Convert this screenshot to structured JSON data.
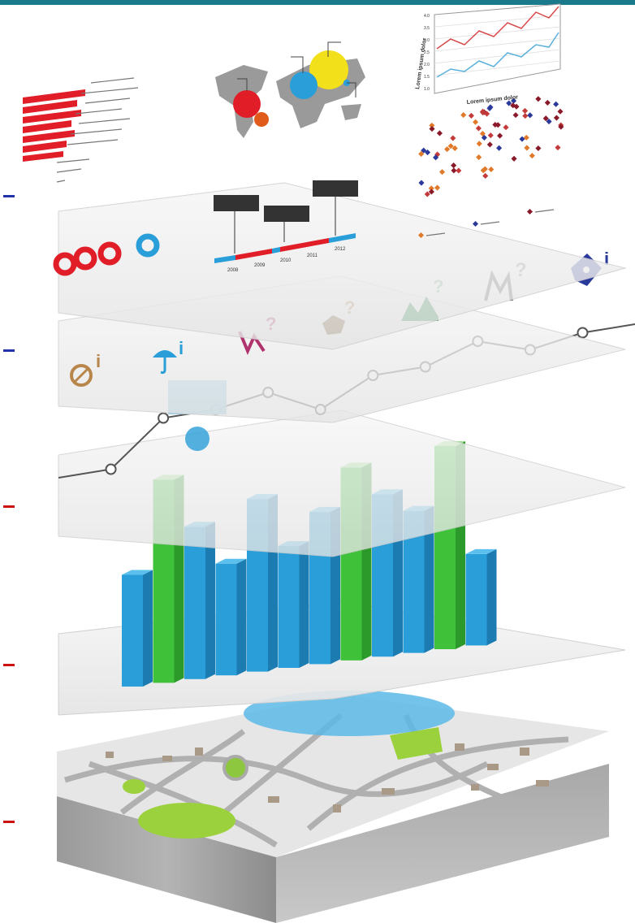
{
  "colors": {
    "top_bar": "#1a7a8c",
    "marker_blue": "#2233aa",
    "marker_red": "#cc1111",
    "bar_blue": "#2a9ed8",
    "bar_green": "#3fc23a",
    "accent_red": "#e11d27",
    "accent_yellow": "#f2e01a",
    "map_green": "#9bd13c"
  },
  "side_markers": [
    {
      "color": "blue"
    },
    {
      "color": "blue"
    },
    {
      "color": "red"
    },
    {
      "color": "red"
    },
    {
      "color": "red"
    }
  ],
  "line_chart": {
    "xlabel": "Lorem ipsum dolor",
    "ylabel": "Lorem ipsum dolor",
    "yticks": [
      "4.0",
      "3.5",
      "3.0",
      "2.5",
      "2.0",
      "1.5",
      "1.0"
    ]
  },
  "timeline": {
    "years": [
      "2008",
      "2009",
      "2010",
      "2011",
      "2012"
    ]
  },
  "layers": [
    {
      "name": "infographics"
    },
    {
      "name": "icons"
    },
    {
      "name": "line-graph"
    },
    {
      "name": "bar-chart"
    },
    {
      "name": "city-map"
    }
  ],
  "icons": [
    "compass-info-icon",
    "umbrella-info-icon",
    "graph-question-icon",
    "rock-question-icon",
    "mountain-question-icon",
    "signal-question-icon",
    "tag-info-icon"
  ],
  "bar_chart": {
    "bars": [
      {
        "color": "blue",
        "value": 0.55
      },
      {
        "color": "green",
        "value": 1.0
      },
      {
        "color": "blue",
        "value": 0.75
      },
      {
        "color": "blue",
        "value": 0.55
      },
      {
        "color": "blue",
        "value": 0.85
      },
      {
        "color": "blue",
        "value": 0.6
      },
      {
        "color": "blue",
        "value": 0.75
      },
      {
        "color": "green",
        "value": 0.95
      },
      {
        "color": "blue",
        "value": 0.8
      },
      {
        "color": "blue",
        "value": 0.7
      },
      {
        "color": "green",
        "value": 1.0
      },
      {
        "color": "blue",
        "value": 0.45
      }
    ]
  },
  "line_graph": {
    "values": [
      0.2,
      0.25,
      0.55,
      0.6,
      0.7,
      0.6,
      0.8,
      0.85,
      1.0,
      0.95,
      1.05,
      1.1
    ]
  }
}
